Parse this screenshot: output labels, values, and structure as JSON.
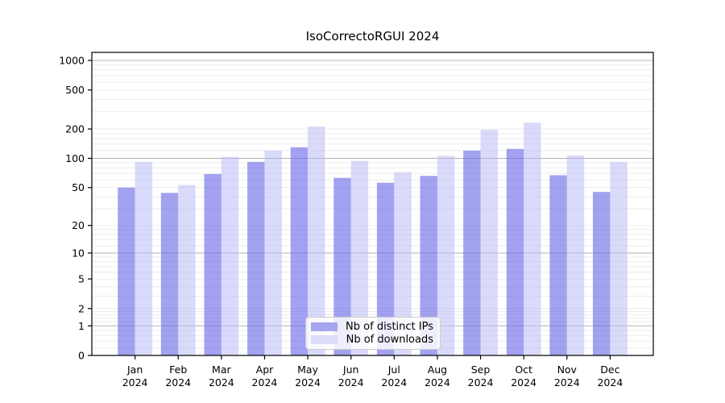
{
  "chart_data": {
    "type": "bar",
    "title": "IsoCorrectoRGUI 2024",
    "categories": [
      "Jan 2024",
      "Feb 2024",
      "Mar 2024",
      "Apr 2024",
      "May 2024",
      "Jun 2024",
      "Jul 2024",
      "Aug 2024",
      "Sep 2024",
      "Oct 2024",
      "Nov 2024",
      "Dec 2024"
    ],
    "series": [
      {
        "name": "Nb of distinct IPs",
        "values": [
          50,
          44,
          69,
          92,
          130,
          63,
          56,
          66,
          120,
          125,
          67,
          45
        ],
        "fill": "rgba(105,105,230,0.62)",
        "legend_swatch": "#a6a6ef"
      },
      {
        "name": "Nb of downloads",
        "values": [
          92,
          53,
          104,
          120,
          212,
          94,
          72,
          106,
          196,
          232,
          107,
          92
        ],
        "fill": "rgba(188,188,246,0.55)",
        "legend_swatch": "#dcdcf9"
      }
    ],
    "yscale": "log1p",
    "yticks": [
      0,
      1,
      2,
      5,
      10,
      20,
      50,
      100,
      200,
      500,
      1000
    ],
    "ylim": [
      0,
      1200
    ],
    "xlabel": "",
    "ylabel": "",
    "grid": {
      "major_ticks": [
        1,
        10,
        100,
        1000
      ],
      "major_color": "#b0b0b0",
      "minor_color": "#ebebeb"
    },
    "legend_position": "lower-center",
    "text_color": "#000000",
    "axis_color": "#000000"
  }
}
